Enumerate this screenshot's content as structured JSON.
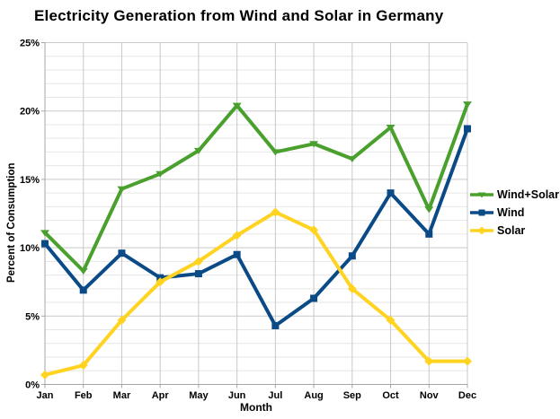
{
  "title": "Electricity Generation from Wind and Solar in Germany",
  "chart_data": {
    "type": "line",
    "title": "Electricity Generation from Wind and Solar in Germany",
    "xlabel": "Month",
    "ylabel": "Percent of Consumption",
    "categories": [
      "Jan",
      "Feb",
      "Mar",
      "Apr",
      "May",
      "Jun",
      "Jul",
      "Aug",
      "Sep",
      "Oct",
      "Nov",
      "Dec"
    ],
    "ylim": [
      0,
      25
    ],
    "y_major_step": 5,
    "y_minor_step": 1,
    "y_tick_labels": [
      "0%",
      "5%",
      "10%",
      "15%",
      "20%",
      "25%"
    ],
    "grid": true,
    "legend_position": "right",
    "series": [
      {
        "name": "Wind+Solar",
        "color": "#4AA02C",
        "marker": "triangle-down",
        "values": [
          11.1,
          8.3,
          14.3,
          15.4,
          17.1,
          20.4,
          17.0,
          17.6,
          16.5,
          18.8,
          12.8,
          20.5
        ]
      },
      {
        "name": "Wind",
        "color": "#0A4A87",
        "marker": "square",
        "values": [
          10.3,
          6.9,
          9.6,
          7.8,
          8.1,
          9.5,
          4.3,
          6.3,
          9.4,
          14.0,
          11.0,
          18.7
        ]
      },
      {
        "name": "Solar",
        "color": "#FFD320",
        "marker": "diamond",
        "values": [
          0.7,
          1.4,
          4.7,
          7.5,
          9.0,
          10.9,
          12.6,
          11.3,
          7.0,
          4.7,
          1.7,
          1.7
        ]
      }
    ]
  },
  "colors": {
    "grid_minor": "#e6e6e6",
    "grid_major": "#c9c9c9",
    "axis": "#a6a6a6",
    "text": "#000000",
    "background": "#ffffff"
  }
}
